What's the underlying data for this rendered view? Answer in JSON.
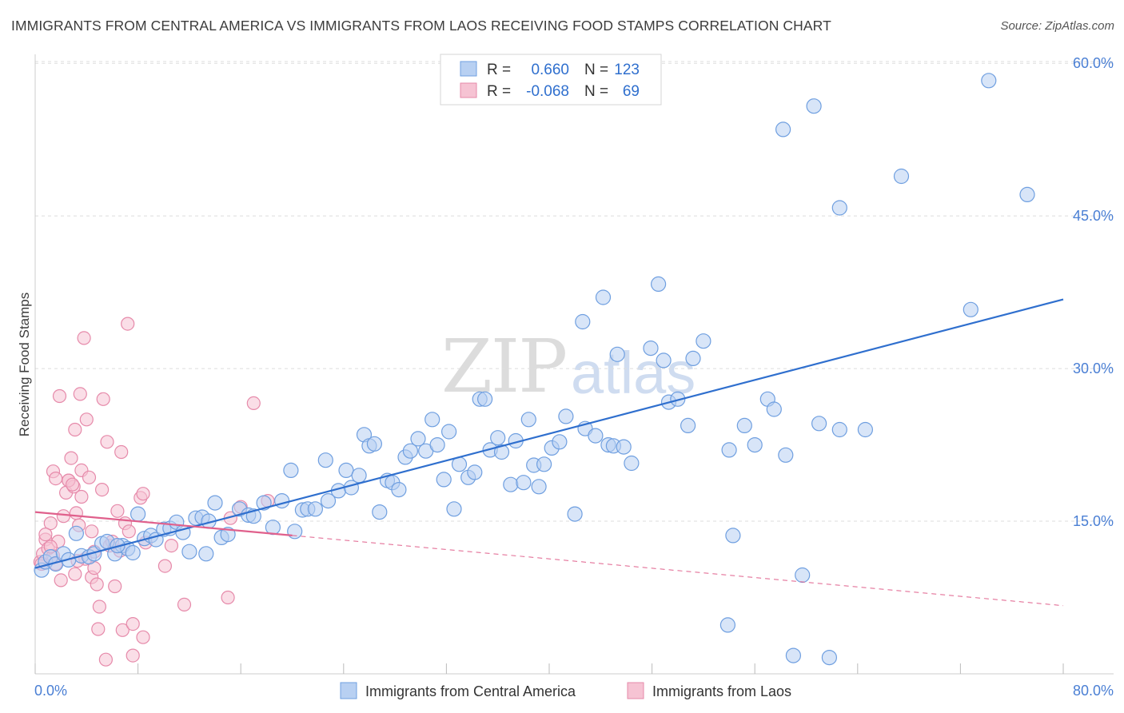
{
  "title": "IMMIGRANTS FROM CENTRAL AMERICA VS IMMIGRANTS FROM LAOS RECEIVING FOOD STAMPS CORRELATION CHART",
  "source": "Source: ZipAtlas.com",
  "watermark": {
    "zip": "ZIP",
    "atlas": "atlas"
  },
  "legend": {
    "rows": [
      {
        "r_label": "R =",
        "r_value": "0.660",
        "n_label": "N =",
        "n_value": "123"
      },
      {
        "r_label": "R =",
        "r_value": "-0.068",
        "n_label": "N =",
        "n_value": "69"
      }
    ]
  },
  "colors": {
    "blue_fill": "#b8d0f2",
    "blue_stroke": "#6f9fe0",
    "blue_line": "#2f6fce",
    "pink_fill": "#f6c3d3",
    "pink_stroke": "#e68aaa",
    "pink_line": "#e0608c",
    "tick": "#4a7fd4",
    "grid": "#dddddd"
  },
  "chart_data": {
    "type": "scatter",
    "title": "IMMIGRANTS FROM CENTRAL AMERICA VS IMMIGRANTS FROM LAOS RECEIVING FOOD STAMPS CORRELATION CHART",
    "xlabel": "",
    "ylabel": "Receiving Food Stamps",
    "xlim": [
      0,
      80
    ],
    "ylim": [
      0,
      65
    ],
    "x_tick_labels": [
      "0.0%",
      "80.0%"
    ],
    "y_ticks": [
      15,
      30,
      45,
      60
    ],
    "y_tick_labels": [
      "15.0%",
      "30.0%",
      "45.0%",
      "60.0%"
    ],
    "grid": true,
    "legend_position": "top-center",
    "series": [
      {
        "name": "Immigrants from Central America",
        "color": "#b8d0f2",
        "r": 0.66,
        "n": 123,
        "trend": {
          "x": [
            0,
            80
          ],
          "y": [
            10.4,
            36.8
          ],
          "dashed_from": null
        },
        "points": [
          [
            0.5,
            10.2
          ],
          [
            0.8,
            11.0
          ],
          [
            1.2,
            11.5
          ],
          [
            1.6,
            10.8
          ],
          [
            2.2,
            11.8
          ],
          [
            2.6,
            11.2
          ],
          [
            3.2,
            13.8
          ],
          [
            3.6,
            11.6
          ],
          [
            4.2,
            11.5
          ],
          [
            4.6,
            11.8
          ],
          [
            5.2,
            12.8
          ],
          [
            5.6,
            13.0
          ],
          [
            6.2,
            11.8
          ],
          [
            6.8,
            12.6
          ],
          [
            7.2,
            12.3
          ],
          [
            7.6,
            11.9
          ],
          [
            8.0,
            15.7
          ],
          [
            8.5,
            13.3
          ],
          [
            9.0,
            13.6
          ],
          [
            9.4,
            13.2
          ],
          [
            10.0,
            14.2
          ],
          [
            10.5,
            14.3
          ],
          [
            11.0,
            14.9
          ],
          [
            11.5,
            13.9
          ],
          [
            12.0,
            12.0
          ],
          [
            12.5,
            15.3
          ],
          [
            13.0,
            15.4
          ],
          [
            13.5,
            15.0
          ],
          [
            14.0,
            16.8
          ],
          [
            14.5,
            13.4
          ],
          [
            15.0,
            13.7
          ],
          [
            15.9,
            16.2
          ],
          [
            16.6,
            15.6
          ],
          [
            17.0,
            15.5
          ],
          [
            17.8,
            16.8
          ],
          [
            18.5,
            14.4
          ],
          [
            19.2,
            17.0
          ],
          [
            19.9,
            20.0
          ],
          [
            20.2,
            14.0
          ],
          [
            20.8,
            16.1
          ],
          [
            21.2,
            16.2
          ],
          [
            21.8,
            16.2
          ],
          [
            22.6,
            21.0
          ],
          [
            22.8,
            17.0
          ],
          [
            23.6,
            18.0
          ],
          [
            24.2,
            20.0
          ],
          [
            24.6,
            18.3
          ],
          [
            25.2,
            19.5
          ],
          [
            25.6,
            23.5
          ],
          [
            26.0,
            22.4
          ],
          [
            26.4,
            22.6
          ],
          [
            26.8,
            15.9
          ],
          [
            27.4,
            19.0
          ],
          [
            27.8,
            18.8
          ],
          [
            28.3,
            18.1
          ],
          [
            28.8,
            21.3
          ],
          [
            29.2,
            21.9
          ],
          [
            29.8,
            23.1
          ],
          [
            30.4,
            21.9
          ],
          [
            30.9,
            25.0
          ],
          [
            31.3,
            22.5
          ],
          [
            31.8,
            19.1
          ],
          [
            32.2,
            23.8
          ],
          [
            32.6,
            16.2
          ],
          [
            33.0,
            20.6
          ],
          [
            33.7,
            19.3
          ],
          [
            34.2,
            19.8
          ],
          [
            34.6,
            27.0
          ],
          [
            35.0,
            27.0
          ],
          [
            35.4,
            22.0
          ],
          [
            36.0,
            23.2
          ],
          [
            36.3,
            21.8
          ],
          [
            37.0,
            18.6
          ],
          [
            37.4,
            22.9
          ],
          [
            38.0,
            18.8
          ],
          [
            38.4,
            25.0
          ],
          [
            38.8,
            20.5
          ],
          [
            39.2,
            18.4
          ],
          [
            39.6,
            20.6
          ],
          [
            40.2,
            22.2
          ],
          [
            40.8,
            22.8
          ],
          [
            41.3,
            25.3
          ],
          [
            42.0,
            15.7
          ],
          [
            42.6,
            34.6
          ],
          [
            42.8,
            24.1
          ],
          [
            43.6,
            23.4
          ],
          [
            44.2,
            37.0
          ],
          [
            44.6,
            22.5
          ],
          [
            45.0,
            22.4
          ],
          [
            45.3,
            31.4
          ],
          [
            45.8,
            22.3
          ],
          [
            46.4,
            20.7
          ],
          [
            47.9,
            32.0
          ],
          [
            48.5,
            38.3
          ],
          [
            48.9,
            30.8
          ],
          [
            49.3,
            26.7
          ],
          [
            50.0,
            27.0
          ],
          [
            50.8,
            24.4
          ],
          [
            51.2,
            31.0
          ],
          [
            52.0,
            32.7
          ],
          [
            54.0,
            22.0
          ],
          [
            54.3,
            13.6
          ],
          [
            55.2,
            24.4
          ],
          [
            56.0,
            22.5
          ],
          [
            57.0,
            27.0
          ],
          [
            57.5,
            26.0
          ],
          [
            58.4,
            21.5
          ],
          [
            59.7,
            9.7
          ],
          [
            53.9,
            4.8
          ],
          [
            59.0,
            1.8
          ],
          [
            61.8,
            1.6
          ],
          [
            61.0,
            24.6
          ],
          [
            62.6,
            24.0
          ],
          [
            58.2,
            53.5
          ],
          [
            60.6,
            55.8
          ],
          [
            62.6,
            45.8
          ],
          [
            67.4,
            48.9
          ],
          [
            72.8,
            35.8
          ],
          [
            74.2,
            58.3
          ],
          [
            77.2,
            47.1
          ],
          [
            64.6,
            24.0
          ],
          [
            6.4,
            12.6
          ],
          [
            13.3,
            11.8
          ]
        ]
      },
      {
        "name": "Immigrants from Laos",
        "color": "#f6c3d3",
        "r": -0.068,
        "n": 69,
        "trend": {
          "x": [
            0,
            80
          ],
          "y": [
            15.9,
            6.7
          ],
          "dashed_from": 20
        },
        "points": [
          [
            0.4,
            11.0
          ],
          [
            0.6,
            11.8
          ],
          [
            0.8,
            13.2
          ],
          [
            1.0,
            12.3
          ],
          [
            1.2,
            14.8
          ],
          [
            1.4,
            11.6
          ],
          [
            1.6,
            10.8
          ],
          [
            1.8,
            13.0
          ],
          [
            1.4,
            19.9
          ],
          [
            1.6,
            19.2
          ],
          [
            1.9,
            27.3
          ],
          [
            2.0,
            9.2
          ],
          [
            2.2,
            15.5
          ],
          [
            2.4,
            17.8
          ],
          [
            2.6,
            19.0
          ],
          [
            2.8,
            21.2
          ],
          [
            3.0,
            18.4
          ],
          [
            3.1,
            24.0
          ],
          [
            3.2,
            15.8
          ],
          [
            3.4,
            14.6
          ],
          [
            3.5,
            27.5
          ],
          [
            3.6,
            20.0
          ],
          [
            3.6,
            17.4
          ],
          [
            3.8,
            33.0
          ],
          [
            4.0,
            25.0
          ],
          [
            4.2,
            19.3
          ],
          [
            4.4,
            14.0
          ],
          [
            4.6,
            12.0
          ],
          [
            4.4,
            9.5
          ],
          [
            3.9,
            11.3
          ],
          [
            4.6,
            10.4
          ],
          [
            4.8,
            8.8
          ],
          [
            4.9,
            4.4
          ],
          [
            5.0,
            6.6
          ],
          [
            5.2,
            18.1
          ],
          [
            5.3,
            27.0
          ],
          [
            5.5,
            1.4
          ],
          [
            5.6,
            22.8
          ],
          [
            5.8,
            12.6
          ],
          [
            6.0,
            13.0
          ],
          [
            6.2,
            8.6
          ],
          [
            6.4,
            16.0
          ],
          [
            6.6,
            12.1
          ],
          [
            6.7,
            21.8
          ],
          [
            6.8,
            4.3
          ],
          [
            7.0,
            14.8
          ],
          [
            7.2,
            34.4
          ],
          [
            7.3,
            14.0
          ],
          [
            7.6,
            1.8
          ],
          [
            7.6,
            4.9
          ],
          [
            8.2,
            17.3
          ],
          [
            8.4,
            17.7
          ],
          [
            8.4,
            3.6
          ],
          [
            8.6,
            12.9
          ],
          [
            10.1,
            10.6
          ],
          [
            10.6,
            12.6
          ],
          [
            11.6,
            6.8
          ],
          [
            15.0,
            7.5
          ],
          [
            15.2,
            15.3
          ],
          [
            16.0,
            16.4
          ],
          [
            17.0,
            26.6
          ],
          [
            18.1,
            17.0
          ],
          [
            0.5,
            10.8
          ],
          [
            0.8,
            13.7
          ],
          [
            1.2,
            12.5
          ],
          [
            2.6,
            19.0
          ],
          [
            3.1,
            9.8
          ],
          [
            2.9,
            18.6
          ],
          [
            3.3,
            11.1
          ]
        ]
      }
    ]
  },
  "bottom_legend": {
    "items": [
      {
        "label": "Immigrants from Central America"
      },
      {
        "label": "Immigrants from Laos"
      }
    ]
  }
}
